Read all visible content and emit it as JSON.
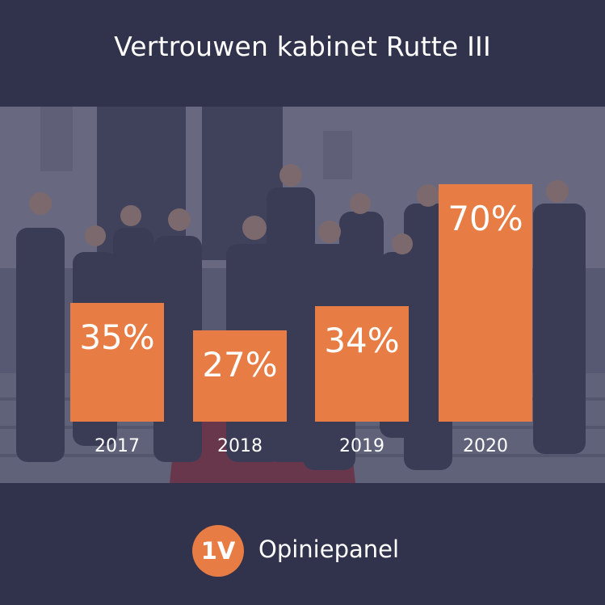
{
  "chart_data": {
    "type": "bar",
    "title": "Vertrouwen kabinet Rutte III",
    "categories": [
      "2017",
      "2018",
      "2019",
      "2020"
    ],
    "values": [
      35,
      27,
      34,
      70
    ],
    "value_labels": [
      "35%",
      "27%",
      "34%",
      "70%"
    ],
    "ylim": [
      0,
      75
    ],
    "grid": false,
    "bar_color": "#e77c45"
  },
  "footer": {
    "logo_text": "1V",
    "brand": "Opiniepanel"
  },
  "colors": {
    "background": "#31324b",
    "accent": "#e77c45"
  }
}
